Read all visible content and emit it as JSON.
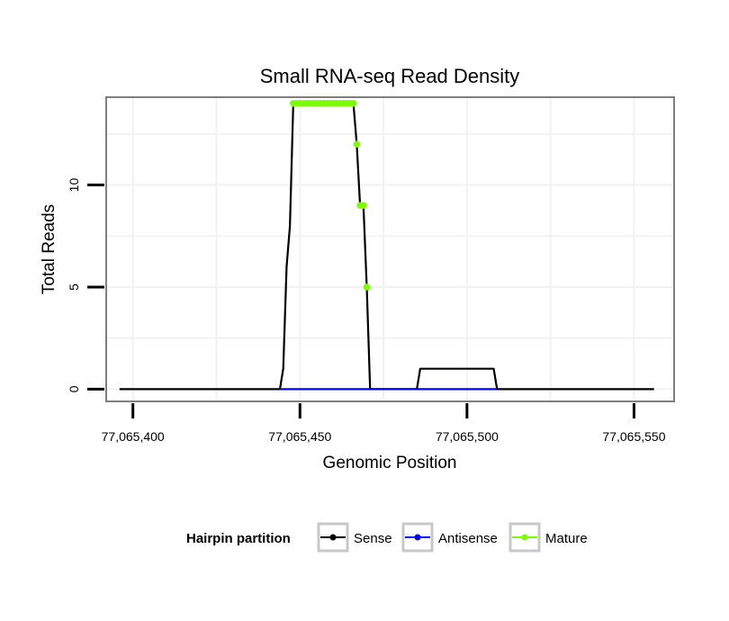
{
  "chart_data": {
    "type": "line",
    "title": "Small RNA-seq Read Density",
    "xlabel": "Genomic Position",
    "ylabel": "Total Reads",
    "xlim": [
      77065392,
      77065562
    ],
    "ylim": [
      -0.6,
      14.3
    ],
    "x_ticks": [
      77065400,
      77065450,
      77065500,
      77065550
    ],
    "x_tick_labels": [
      "77,065,400",
      "77,065,450",
      "77,065,500",
      "77,065,550"
    ],
    "y_ticks": [
      0,
      5,
      10
    ],
    "y_tick_labels": [
      "0",
      "5",
      "10"
    ],
    "grid": true,
    "legend": {
      "title": "Hairpin partition",
      "position": "bottom",
      "entries": [
        {
          "label": "Sense",
          "color": "#000000"
        },
        {
          "label": "Antisense",
          "color": "#0000ff"
        },
        {
          "label": "Mature",
          "color": "#7cfc00"
        }
      ]
    },
    "series": [
      {
        "name": "Sense",
        "color": "#000000",
        "points": [
          [
            77065396,
            0
          ],
          [
            77065444,
            0
          ],
          [
            77065445,
            1
          ],
          [
            77065446,
            6
          ],
          [
            77065447,
            8
          ],
          [
            77065448,
            14
          ],
          [
            77065466,
            14
          ],
          [
            77065467,
            12
          ],
          [
            77065468,
            9
          ],
          [
            77065469,
            9
          ],
          [
            77065470,
            5
          ],
          [
            77065471,
            0
          ],
          [
            77065485,
            0
          ],
          [
            77065486,
            1
          ],
          [
            77065508,
            1
          ],
          [
            77065509,
            0
          ],
          [
            77065556,
            0
          ]
        ]
      },
      {
        "name": "Antisense",
        "color": "#0000ff",
        "points": [
          [
            77065444,
            0
          ],
          [
            77065509,
            0
          ]
        ]
      },
      {
        "name": "Mature",
        "color": "#7cfc00",
        "points": [
          [
            77065448,
            14
          ],
          [
            77065449,
            14
          ],
          [
            77065450,
            14
          ],
          [
            77065451,
            14
          ],
          [
            77065452,
            14
          ],
          [
            77065453,
            14
          ],
          [
            77065454,
            14
          ],
          [
            77065455,
            14
          ],
          [
            77065456,
            14
          ],
          [
            77065457,
            14
          ],
          [
            77065458,
            14
          ],
          [
            77065459,
            14
          ],
          [
            77065460,
            14
          ],
          [
            77065461,
            14
          ],
          [
            77065462,
            14
          ],
          [
            77065463,
            14
          ],
          [
            77065464,
            14
          ],
          [
            77065465,
            14
          ],
          [
            77065466,
            14
          ],
          [
            77065467,
            12
          ],
          [
            77065468,
            9
          ],
          [
            77065469,
            9
          ],
          [
            77065470,
            5
          ]
        ]
      }
    ]
  }
}
